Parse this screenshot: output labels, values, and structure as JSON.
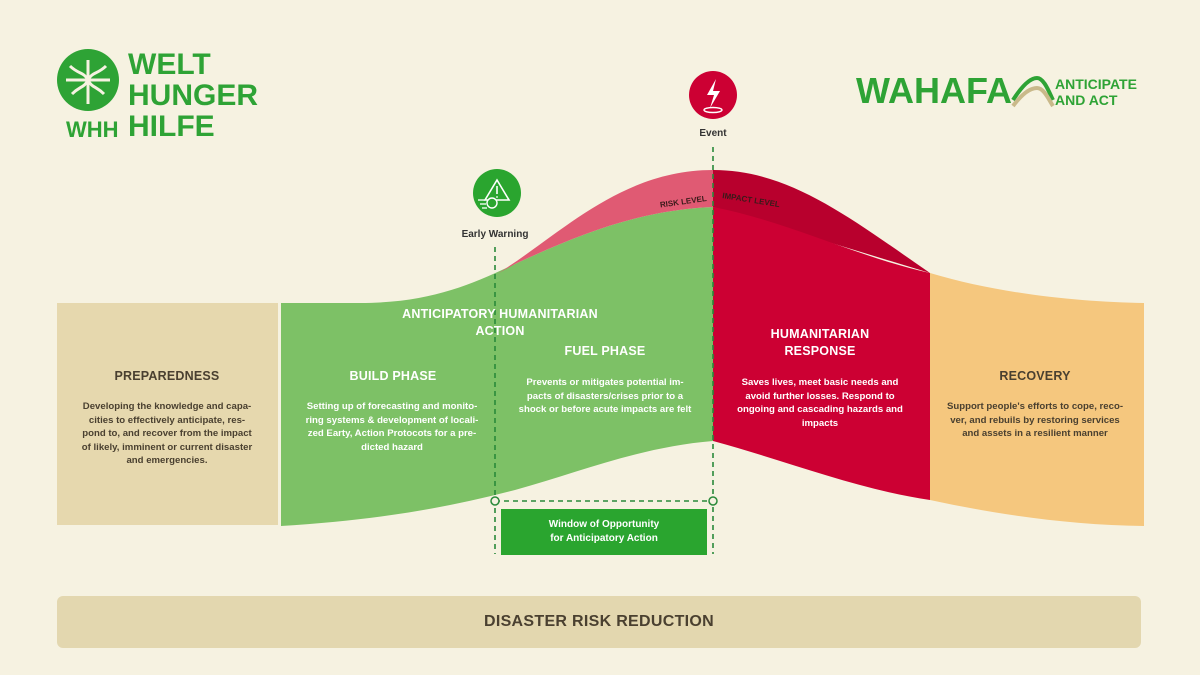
{
  "logos": {
    "whh_name_line1": "WELT",
    "whh_name_line2": "HUNGER",
    "whh_name_line3": "HILFE",
    "whh_abbrev": "WHH",
    "wahafa_name": "WAHAFA",
    "wahafa_tagline_line1": "ANTICIPATE",
    "wahafa_tagline_line2": "AND ACT"
  },
  "markers": {
    "event_label": "Event",
    "early_warning_label": "Early Warning"
  },
  "curve_labels": {
    "risk_level": "RISK LEVEL",
    "impact_level": "IMPACT LEVEL"
  },
  "phases": {
    "preparedness": {
      "title": "PREPAREDNESS",
      "text": "Developing the knowledge and capa-cities to effectively anticipate, res-pond to, and recover from the impact of likely, imminent or current disaster and emergencies."
    },
    "anticipatory": {
      "title_line1": "ANTICIPATORY HUMANITARIAN",
      "title_line2": "ACTION"
    },
    "build": {
      "title": "BUILD PHASE",
      "text": "Setting up of forecasting and monito-ring systems & development of locali-zed Earty, Action Protocots for a pre-dicted hazard"
    },
    "fuel": {
      "title": "FUEL PHASE",
      "text": "Prevents or mitigates potential im-pacts of disasters/crises prior to a shock or before acute impacts are felt"
    },
    "humanitarian": {
      "title_line1": "HUMANITARIAN",
      "title_line2": "RESPONSE",
      "text": "Saves lives, meet basic needs and avoid further losses. Respond to ongoing and cascading hazards and impacts"
    },
    "recovery": {
      "title": "RECOVERY",
      "text": "Support people's efforts to cope, reco-ver, and rebuils by restoring services and assets in a resilient manner"
    }
  },
  "window": {
    "line1": "Window of Opportunity",
    "line2": "for Anticipatory Action"
  },
  "footer": {
    "title": "DISASTER RISK REDUCTION"
  },
  "colors": {
    "background": "#f6f2e1",
    "preparedness": "#e6d8ae",
    "anticipatory_green": "#7dc166",
    "window_green": "#2aa52f",
    "humanitarian_red": "#cc0033",
    "risk_pink": "#e05a73",
    "recovery_orange": "#f5c77e",
    "drr_band": "#e3d7af",
    "logo_green": "#2ea335"
  }
}
